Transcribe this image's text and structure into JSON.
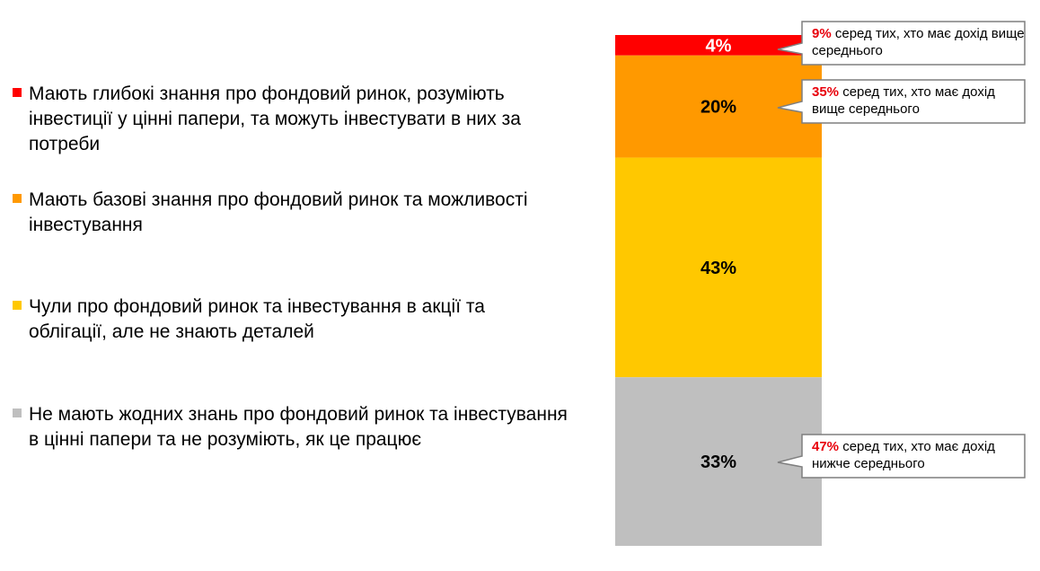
{
  "chart_data": {
    "type": "bar",
    "stacked": true,
    "orientation": "vertical",
    "ylim": [
      0,
      100
    ],
    "categories": [
      ""
    ],
    "series": [
      {
        "name": "Мають глибокі знання про фондовий ринок, розуміють інвестиції у цінні папери, та можуть інвестувати в них за потреби",
        "values": [
          4
        ],
        "label": "4%",
        "color": "#ff0000",
        "callout": {
          "pct": "9%",
          "text": " серед тих, хто має дохід вище середнього"
        }
      },
      {
        "name": "Мають базові знання про фондовий ринок та можливості інвестування",
        "values": [
          20
        ],
        "label": "20%",
        "color": "#ff9900",
        "callout": {
          "pct": "35%",
          "text": " серед тих, хто має дохід вище середнього"
        }
      },
      {
        "name": "Чули про фондовий ринок та інвестування в акції та облігації, але не знають деталей",
        "values": [
          43
        ],
        "label": "43%",
        "color": "#ffc800",
        "callout": null
      },
      {
        "name": "Не мають жодних знань про фондовий ринок та інвестування в цінні папери та не розуміють, як це працює",
        "values": [
          33
        ],
        "label": "33%",
        "color": "#bfbfbf",
        "callout": {
          "pct": "47%",
          "text": " серед тих, хто має дохід нижче середнього"
        }
      }
    ],
    "legend_position": "left",
    "grid": false
  }
}
